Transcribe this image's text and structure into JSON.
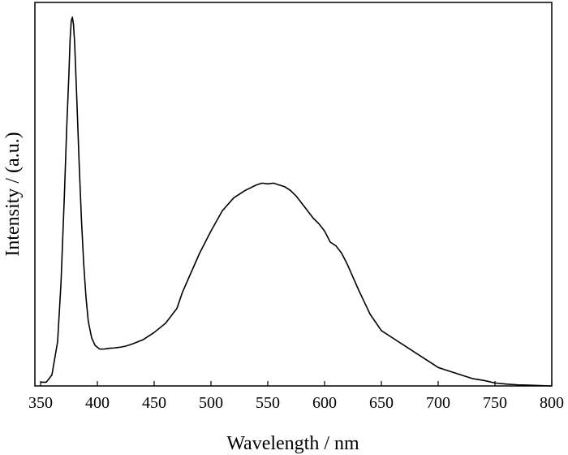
{
  "chart_data": {
    "type": "line",
    "title": "",
    "xlabel": "Wavelength / nm",
    "ylabel": "Intensity / (a.u.)",
    "xlim": [
      345,
      800
    ],
    "ylim": [
      0,
      1.04
    ],
    "y_ticks_labeled": false,
    "x_ticks": [
      350,
      400,
      450,
      500,
      550,
      600,
      650,
      700,
      750,
      800
    ],
    "x_tick_labels": [
      "350",
      "400",
      "450",
      "500",
      "550",
      "600",
      "650",
      "700",
      "750",
      "800"
    ],
    "grid": false,
    "legend": "none",
    "line_color": "#000000",
    "series": [
      {
        "x": [
          350,
          355,
          360,
          365,
          368,
          371,
          373,
          375,
          376,
          377,
          378,
          379,
          380,
          381,
          382,
          384,
          386,
          388,
          390,
          392,
          395,
          398,
          402,
          406,
          410,
          415,
          420,
          425,
          430,
          440,
          450,
          460,
          465,
          470,
          475,
          480,
          490,
          500,
          510,
          520,
          530,
          540,
          545,
          550,
          555,
          560,
          565,
          570,
          575,
          580,
          585,
          590,
          595,
          600,
          605,
          610,
          615,
          620,
          630,
          640,
          650,
          660,
          670,
          680,
          690,
          700,
          710,
          720,
          730,
          740,
          750,
          760,
          770,
          780,
          790,
          800
        ],
        "y": [
          0.01,
          0.01,
          0.03,
          0.12,
          0.28,
          0.52,
          0.7,
          0.85,
          0.94,
          0.99,
          1.0,
          0.98,
          0.93,
          0.85,
          0.77,
          0.6,
          0.45,
          0.33,
          0.24,
          0.175,
          0.13,
          0.11,
          0.1,
          0.1,
          0.102,
          0.103,
          0.105,
          0.108,
          0.113,
          0.125,
          0.145,
          0.17,
          0.19,
          0.21,
          0.255,
          0.29,
          0.36,
          0.42,
          0.475,
          0.51,
          0.53,
          0.545,
          0.55,
          0.548,
          0.55,
          0.545,
          0.54,
          0.53,
          0.515,
          0.495,
          0.475,
          0.455,
          0.44,
          0.42,
          0.39,
          0.38,
          0.36,
          0.33,
          0.26,
          0.195,
          0.15,
          0.13,
          0.11,
          0.09,
          0.07,
          0.05,
          0.04,
          0.03,
          0.02,
          0.015,
          0.008,
          0.005,
          0.003,
          0.002,
          0.001,
          0
        ]
      }
    ]
  }
}
